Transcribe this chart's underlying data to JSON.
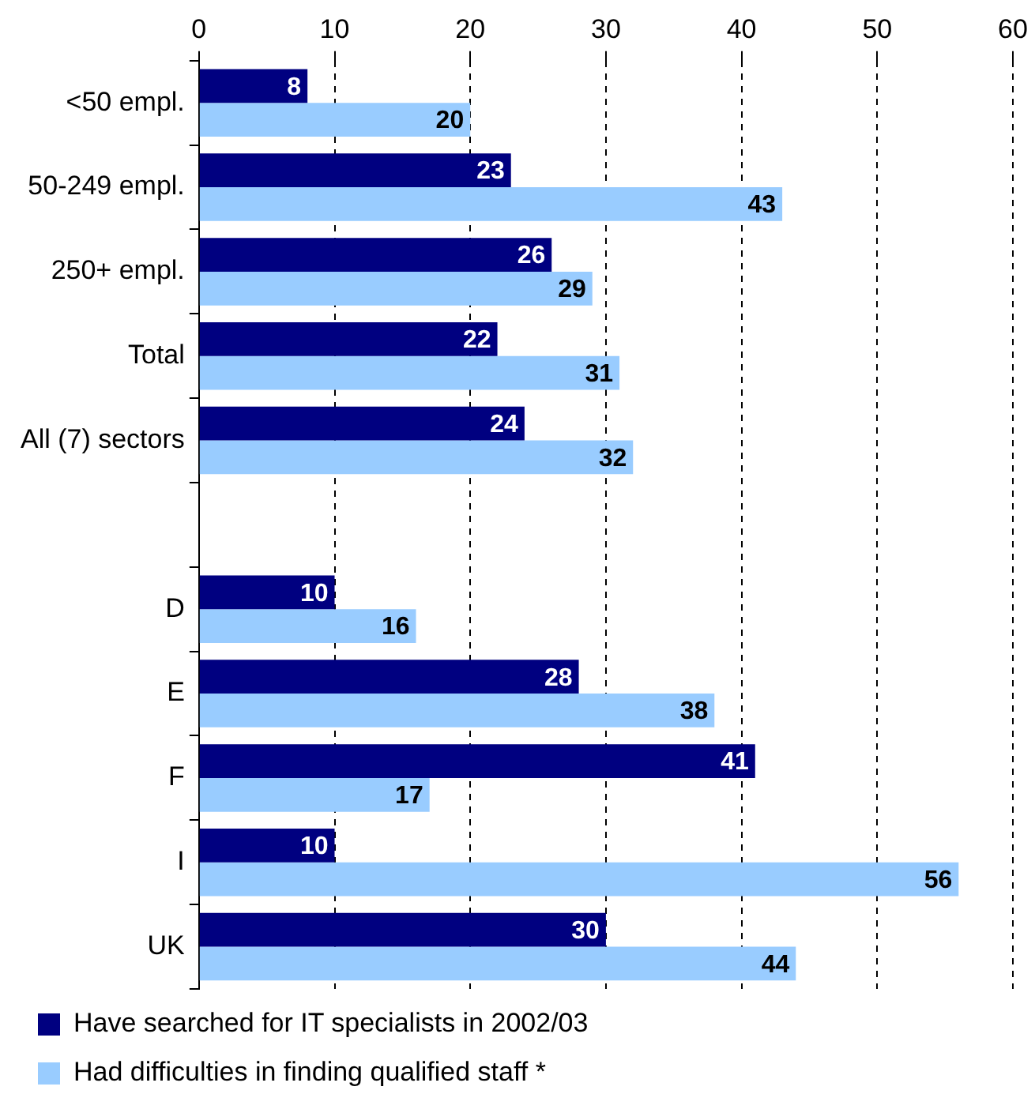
{
  "chart_data": {
    "type": "bar",
    "orientation": "horizontal",
    "categories": [
      "<50 empl.",
      "50-249 empl.",
      "250+ empl.",
      "Total",
      "All (7) sectors",
      null,
      "D",
      "E",
      "F",
      "I",
      "UK"
    ],
    "series": [
      {
        "name": "Have searched for IT specialists in 2002/03",
        "color": "#000080",
        "values": [
          8,
          23,
          26,
          22,
          24,
          null,
          10,
          28,
          41,
          10,
          30
        ]
      },
      {
        "name": "Had difficulties in finding qualified staff *",
        "color": "#99ccff",
        "values": [
          20,
          43,
          29,
          31,
          32,
          null,
          16,
          38,
          17,
          56,
          44
        ]
      }
    ],
    "xlim": [
      0,
      60
    ],
    "xticks": [
      0,
      10,
      20,
      30,
      40,
      50,
      60
    ],
    "grid": "x",
    "legend": "bottom",
    "data_labels": true
  }
}
